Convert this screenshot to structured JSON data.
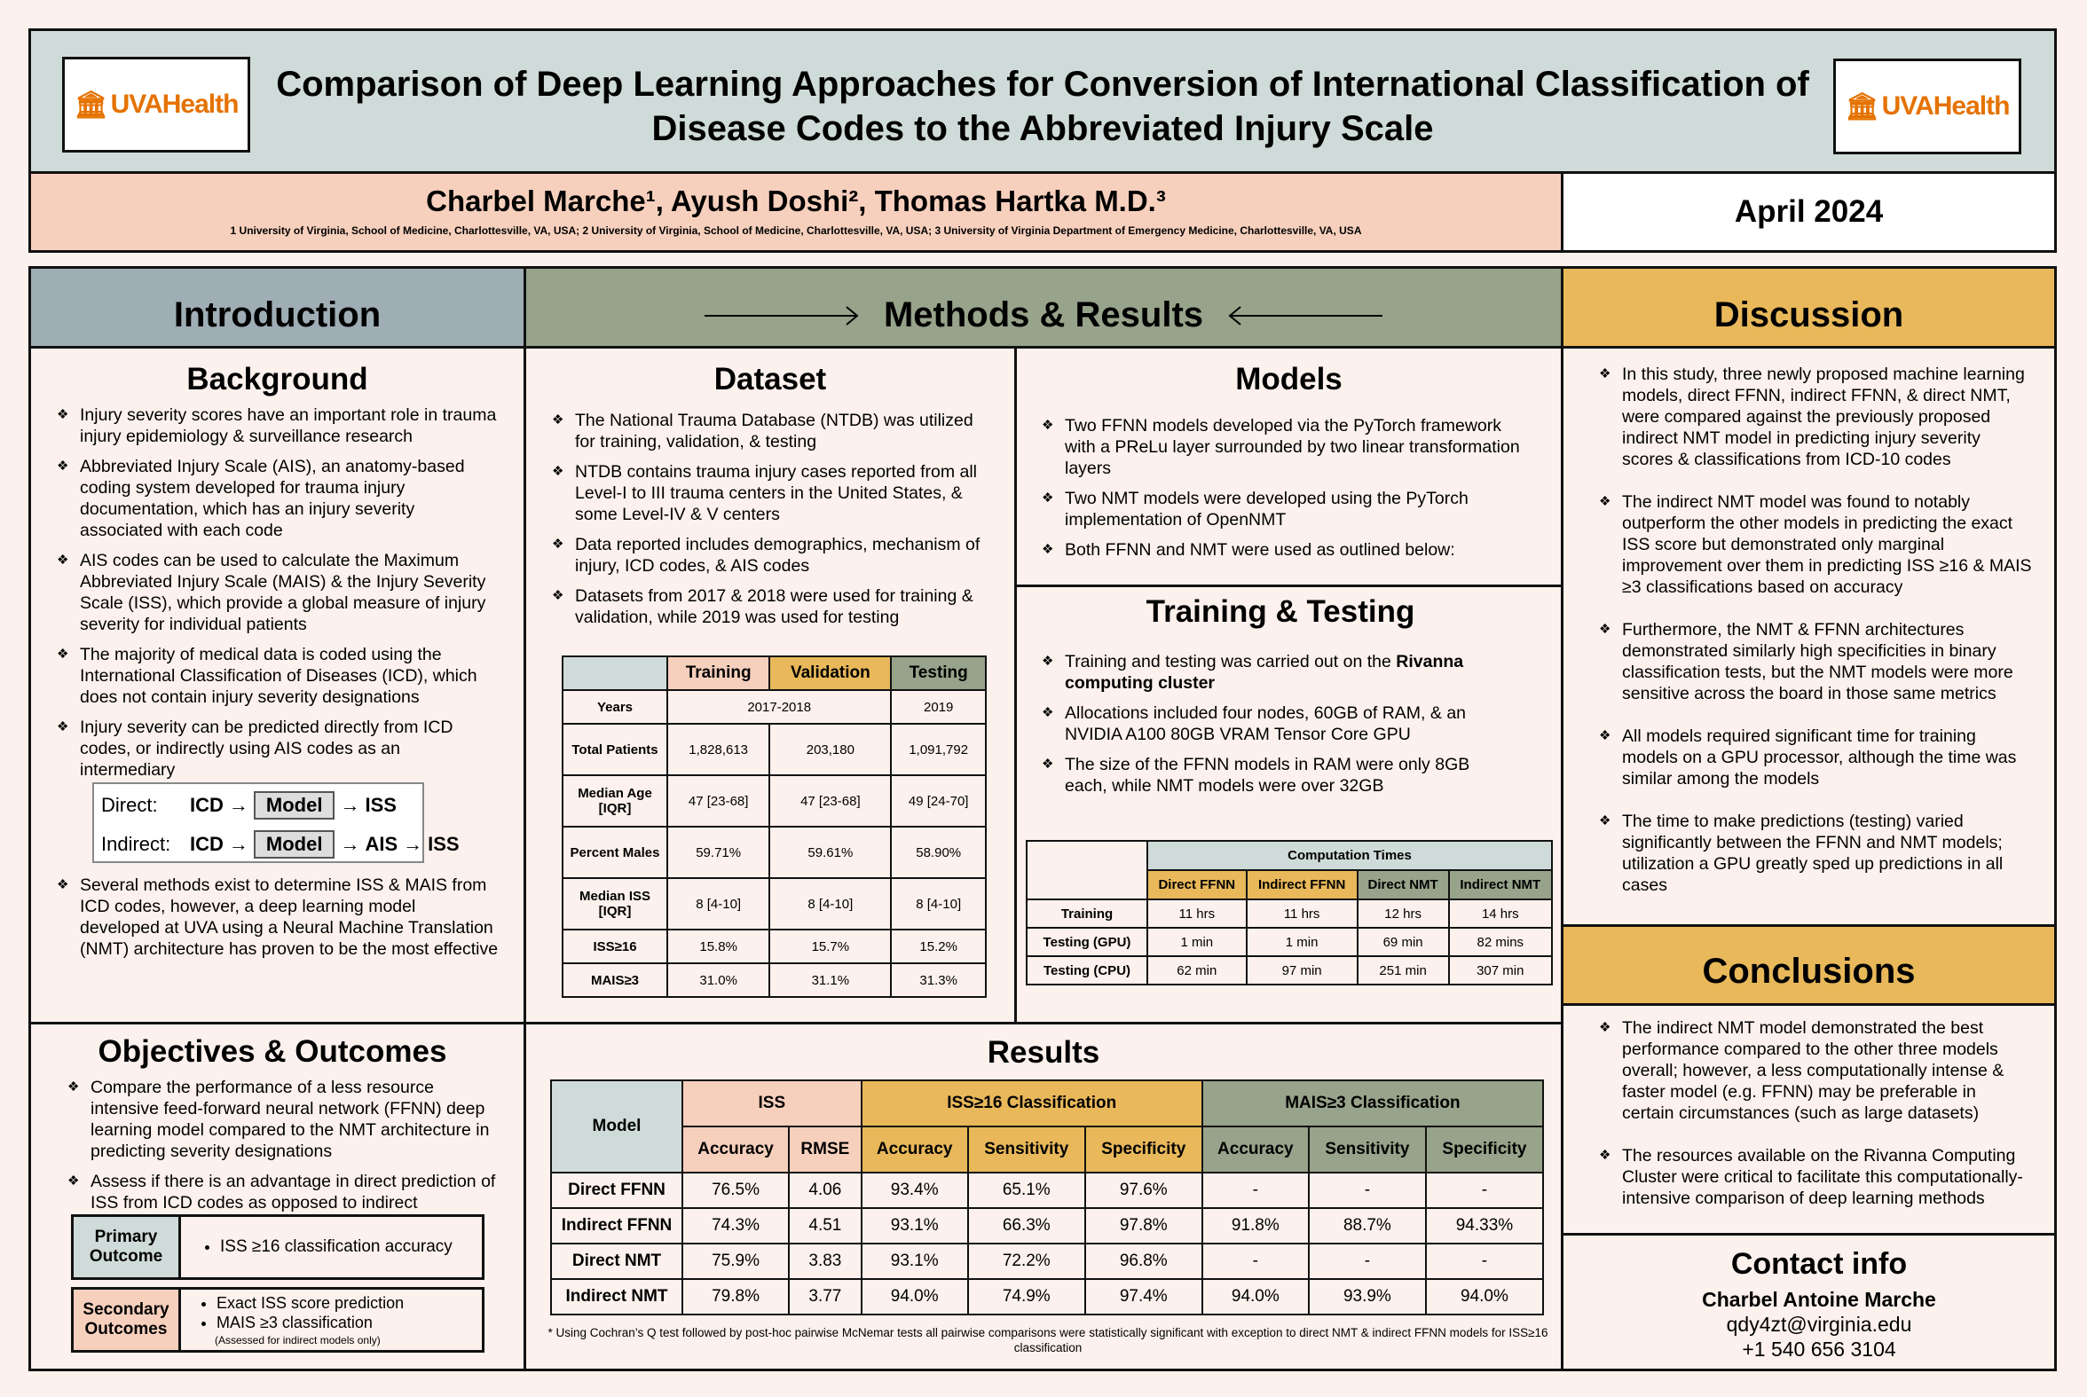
{
  "header": {
    "title": "Comparison of Deep Learning Approaches for Conversion of International Classification of Disease Codes to the Abbreviated Injury Scale",
    "logo_left": "UVAHealth",
    "logo_right": "UVAHealth",
    "authors": "Charbel Marche¹, Ayush Doshi², Thomas Hartka M.D.³",
    "affiliations": "1 University of Virginia, School of Medicine, Charlottesville, VA, USA; 2 University of Virginia, School of Medicine, Charlottesville, VA, USA; 3 University of Virginia Department of Emergency Medicine, Charlottesville, VA, USA",
    "date": "April 2024"
  },
  "colors": {
    "header": "#cfdbd9",
    "intro": "#9fadb5",
    "methods": "#97a38a",
    "discussion": "#e8b85a",
    "training": "#f7d0bd",
    "validation": "#e8b85a",
    "testing": "#97a38a",
    "background": "#fcf1ec"
  },
  "intro": {
    "heading": "Introduction",
    "background_title": "Background",
    "bullets": [
      "Injury severity scores have an important role in trauma injury epidemiology & surveillance research",
      "Abbreviated Injury Scale (AIS), an anatomy-based coding system developed for trauma injury documentation, which has an injury severity associated with each code",
      "AIS codes can be used to calculate the Maximum Abbreviated Injury Scale (MAIS) & the Injury Severity Scale (ISS), which provide a global measure of injury severity for individual patients",
      "The majority of medical data is coded using the International Classification of Diseases (ICD), which does not contain injury severity designations",
      "Injury severity can be predicted directly from ICD codes, or indirectly using AIS codes as an intermediary"
    ],
    "diagram": {
      "direct_label": "Direct:",
      "icd": "ICD",
      "model": "Model",
      "iss": "ISS",
      "indirect_label": "Indirect:",
      "ais": "AIS"
    },
    "last_bullet": "Several methods exist to determine ISS & MAIS from ICD codes, however, a deep learning model developed at UVA using a Neural Machine Translation (NMT) architecture has proven to be the most effective"
  },
  "objectives": {
    "title": "Objectives & Outcomes",
    "bullets": [
      "Compare the performance of a less resource intensive feed-forward neural network (FFNN) deep learning model compared to the NMT architecture in predicting severity designations",
      "Assess if there is an advantage in direct prediction of ISS from ICD codes as opposed to indirect"
    ],
    "primary_label": "Primary Outcome",
    "primary_items": [
      "ISS ≥16 classification accuracy"
    ],
    "secondary_label": "Secondary Outcomes",
    "secondary_items": [
      "Exact ISS score prediction",
      "MAIS ≥3 classification"
    ],
    "secondary_note": "(Assessed for indirect models only)"
  },
  "methods": {
    "heading": "Methods & Results",
    "dataset_title": "Dataset",
    "dataset_bullets": [
      "The National Trauma Database (NTDB) was utilized for training, validation, & testing",
      "NTDB contains trauma injury cases reported from all Level-I to III trauma centers in the United States, & some Level-IV & V centers",
      "Data reported includes demographics, mechanism of injury, ICD codes, & AIS codes",
      "Datasets from 2017 & 2018 were used for training & validation, while 2019 was used for testing"
    ],
    "dataset_table": {
      "headers": [
        "Training",
        "Validation",
        "Testing"
      ],
      "rows": [
        {
          "label": "Years",
          "train_val": "2017-2018",
          "test": "2019"
        },
        {
          "label": "Total Patients",
          "cells": [
            "1,828,613",
            "203,180",
            "1,091,792"
          ]
        },
        {
          "label": "Median Age [IQR]",
          "cells": [
            "47 [23-68]",
            "47 [23-68]",
            "49 [24-70]"
          ]
        },
        {
          "label": "Percent Males",
          "cells": [
            "59.71%",
            "59.61%",
            "58.90%"
          ]
        },
        {
          "label": "Median ISS [IQR]",
          "cells": [
            "8 [4-10]",
            "8 [4-10]",
            "8 [4-10]"
          ]
        },
        {
          "label": "ISS≥16",
          "cells": [
            "15.8%",
            "15.7%",
            "15.2%"
          ]
        },
        {
          "label": "MAIS≥3",
          "cells": [
            "31.0%",
            "31.1%",
            "31.3%"
          ]
        }
      ]
    },
    "models_title": "Models",
    "models_bullets": [
      "Two FFNN models developed via the PyTorch framework with a PReLu layer surrounded by two linear transformation layers",
      "Two NMT models were developed using the PyTorch implementation of OpenNMT",
      "Both FFNN and NMT were used as outlined below:"
    ],
    "training_title": "Training & Testing",
    "training_b1_pre": "Training and testing was carried out on the ",
    "training_b1_bold": "Rivanna computing cluster",
    "training_bullets": [
      "Allocations included four nodes, 60GB of RAM, & an NVIDIA A100 80GB VRAM Tensor Core GPU",
      "The size of the FFNN models in RAM were only 8GB each, while NMT models were over 32GB"
    ],
    "comp_table": {
      "title": "Computation Times",
      "headers": [
        "Direct FFNN",
        "Indirect FFNN",
        "Direct NMT",
        "Indirect NMT"
      ],
      "rows": [
        {
          "label": "Training",
          "cells": [
            "11 hrs",
            "11 hrs",
            "12 hrs",
            "14 hrs"
          ]
        },
        {
          "label": "Testing (GPU)",
          "cells": [
            "1 min",
            "1 min",
            "69 min",
            "82 mins"
          ]
        },
        {
          "label": "Testing (CPU)",
          "cells": [
            "62 min",
            "97 min",
            "251 min",
            "307 min"
          ]
        }
      ]
    },
    "results_title": "Results",
    "results_table": {
      "model_header": "Model",
      "groups": [
        "ISS",
        "ISS≥16 Classification",
        "MAIS≥3 Classification"
      ],
      "subheaders": [
        "Accuracy",
        "RMSE",
        "Accuracy",
        "Sensitivity",
        "Specificity",
        "Accuracy",
        "Sensitivity",
        "Specificity"
      ],
      "rows": [
        {
          "label": "Direct FFNN",
          "cells": [
            "76.5%",
            "4.06",
            "93.4%",
            "65.1%",
            "97.6%",
            "-",
            "-",
            "-"
          ]
        },
        {
          "label": "Indirect FFNN",
          "cells": [
            "74.3%",
            "4.51",
            "93.1%",
            "66.3%",
            "97.8%",
            "91.8%",
            "88.7%",
            "94.33%"
          ]
        },
        {
          "label": "Direct NMT",
          "cells": [
            "75.9%",
            "3.83",
            "93.1%",
            "72.2%",
            "96.8%",
            "-",
            "-",
            "-"
          ]
        },
        {
          "label": "Indirect NMT",
          "cells": [
            "79.8%",
            "3.77",
            "94.0%",
            "74.9%",
            "97.4%",
            "94.0%",
            "93.9%",
            "94.0%"
          ]
        }
      ]
    },
    "results_note": "* Using Cochran’s Q test followed by post-hoc pairwise McNemar tests all pairwise comparisons were statistically significant with exception to direct NMT & indirect FFNN models for ISS≥16 classification"
  },
  "discussion": {
    "heading": "Discussion",
    "bullets": [
      "In this study, three newly proposed machine learning models, direct FFNN, indirect FFNN, & direct NMT, were compared against the previously proposed indirect NMT model in predicting injury severity scores & classifications from ICD-10 codes",
      "The indirect NMT model was found to notably outperform the other models in predicting the exact ISS score but demonstrated only marginal improvement over them in predicting ISS ≥16 & MAIS ≥3 classifications based on accuracy",
      "Furthermore, the NMT & FFNN architectures demonstrated similarly high specificities in binary classification tests, but the NMT models were more sensitive across the board in those same metrics",
      "All models required significant time for training models on a GPU processor, although the time was similar among the models",
      "The time to make predictions (testing) varied significantly between the FFNN and NMT models; utilization a GPU greatly sped up predictions in all cases"
    ]
  },
  "conclusions": {
    "heading": "Conclusions",
    "bullets": [
      "The indirect NMT model demonstrated the best performance compared to the other three models overall; however, a less computationally intense & faster model (e.g. FFNN) may be preferable in certain circumstances (such as large datasets)",
      "The resources available on the Rivanna Computing Cluster were critical to facilitate this computationally-intensive comparison of deep learning methods"
    ]
  },
  "contact": {
    "title": "Contact info",
    "name": "Charbel Antoine Marche",
    "email": "qdy4zt@virginia.edu",
    "phone": "+1 540 656 3104"
  }
}
